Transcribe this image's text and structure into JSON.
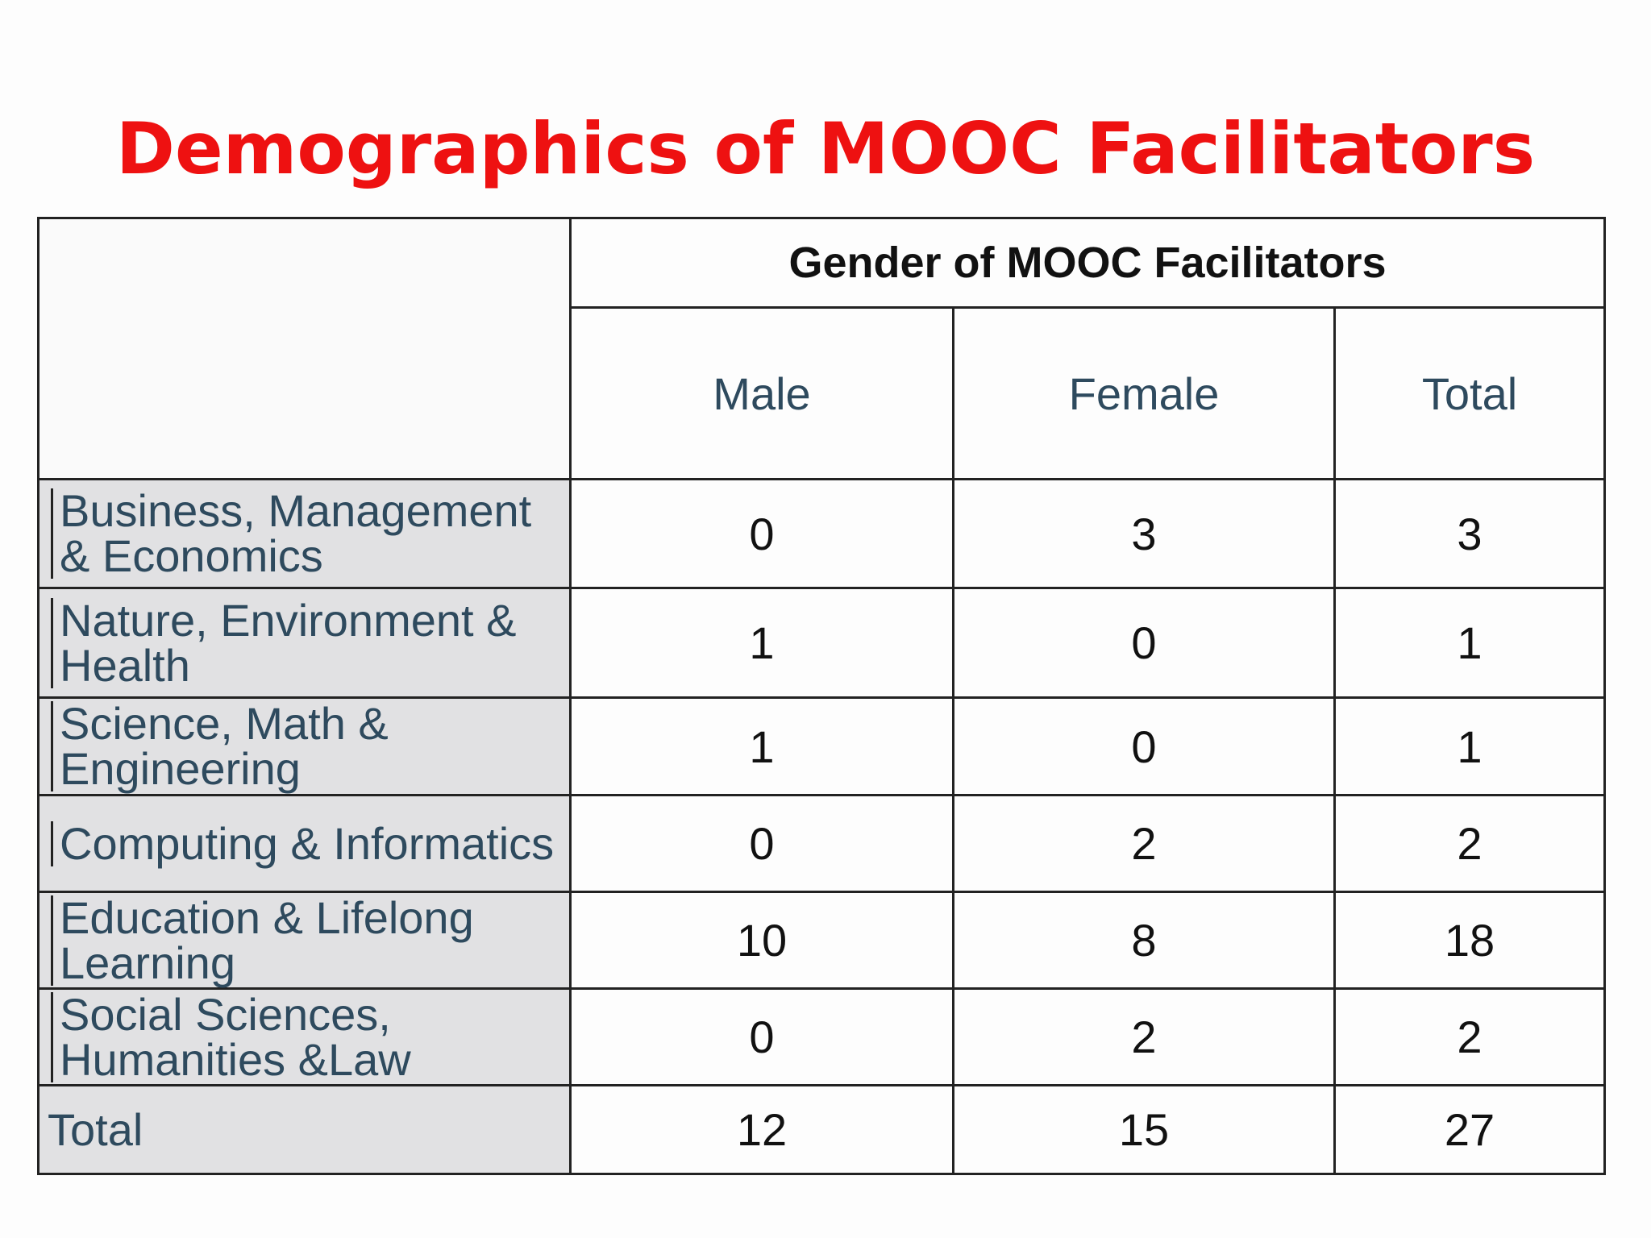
{
  "title": "Demographics of MOOC Facilitators",
  "table": {
    "group_header": "Gender of MOOC Facilitators",
    "columns": [
      "Male",
      "Female",
      "Total"
    ],
    "rows": [
      {
        "label": "Business, Management & Economics",
        "male": "0",
        "female": "3",
        "total": "3"
      },
      {
        "label": "Nature, Environment & Health",
        "male": "1",
        "female": "0",
        "total": "1"
      },
      {
        "label": "Science, Math & Engineering",
        "male": "1",
        "female": "0",
        "total": "1"
      },
      {
        "label": "Computing & Informatics",
        "male": "0",
        "female": "2",
        "total": "2"
      },
      {
        "label": "Education & Lifelong Learning",
        "male": "10",
        "female": "8",
        "total": "18"
      },
      {
        "label": "Social Sciences, Humanities &Law",
        "male": "0",
        "female": "2",
        "total": "2"
      }
    ],
    "total_row": {
      "label": "Total",
      "male": "12",
      "female": "15",
      "total": "27"
    }
  },
  "colors": {
    "title": "#ee1111",
    "label_text": "#2e4a5e",
    "label_background": "#e1e1e3",
    "border": "#222222"
  }
}
